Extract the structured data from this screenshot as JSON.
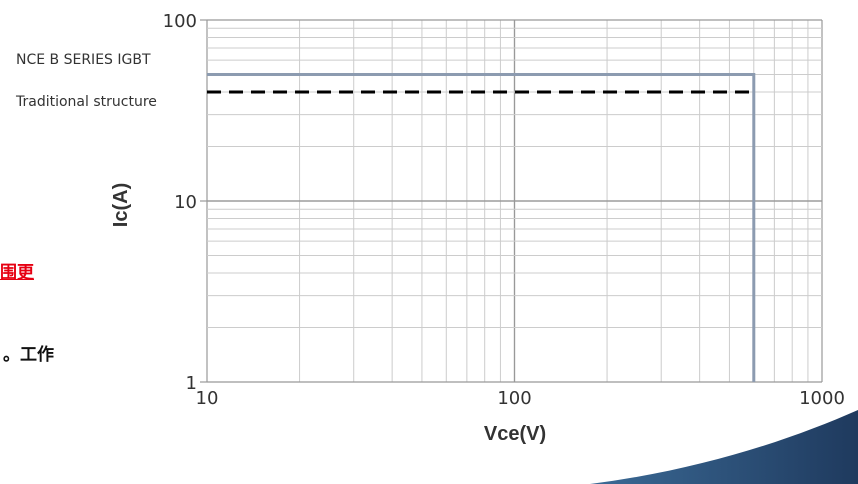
{
  "chart_data": {
    "type": "line",
    "title": "",
    "xlabel": "Vce(V)",
    "ylabel": "Ic(A)",
    "xscale": "log",
    "yscale": "log",
    "xlim": [
      10,
      1000
    ],
    "ylim": [
      1,
      100
    ],
    "x_ticks": [
      10,
      100,
      1000
    ],
    "x_tick_labels": [
      "10",
      "100",
      "1000"
    ],
    "y_ticks": [
      1,
      10,
      100
    ],
    "y_tick_labels": [
      "1",
      "10",
      "100"
    ],
    "grid": true,
    "legend_position": "top-left, outside plot",
    "series": [
      {
        "name": "NCE B SERIES IGBT",
        "style": "solid",
        "color": "#8c9bb0",
        "x": [
          10,
          600,
          600
        ],
        "y": [
          50,
          50,
          1
        ]
      },
      {
        "name": "Traditional structure",
        "style": "dashed",
        "color": "#000000",
        "x": [
          10,
          600
        ],
        "y": [
          40,
          40
        ]
      }
    ]
  },
  "side_text": {
    "red_fragment": "围更",
    "black_fragment": "工作。",
    "red_color": "#e60012"
  },
  "colors": {
    "grid": "#cccccc",
    "major_grid": "#999999",
    "axis_text": "#333333",
    "corner_shape_dark": "#1f3a5e",
    "corner_shape_light": "#3b6a96"
  }
}
